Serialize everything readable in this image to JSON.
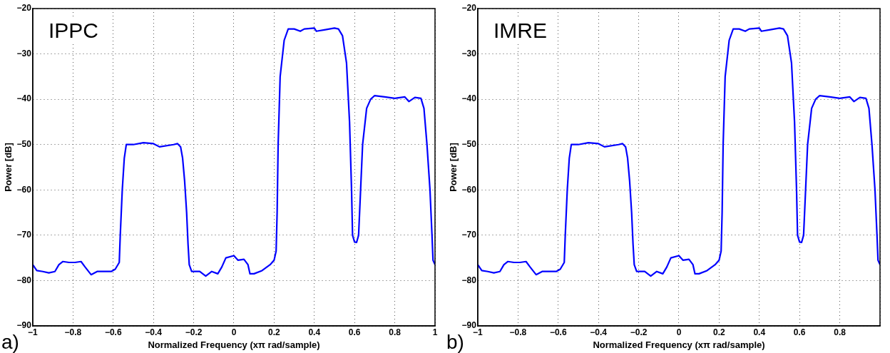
{
  "chart_data": [
    {
      "type": "line",
      "annotations": [
        "IPPC",
        "a)"
      ],
      "xlabel": "Normalized Frequency (xπ rad/sample)",
      "ylabel": "Power [dB]",
      "color": "#0000ff",
      "grid": true,
      "xlim": [
        -1,
        1
      ],
      "ylim": [
        -90,
        -20
      ],
      "xticks": [
        -1,
        -0.8,
        -0.6,
        -0.4,
        -0.2,
        0,
        0.2,
        0.4,
        0.6,
        0.8,
        1
      ],
      "yticks": [
        -90,
        -80,
        -70,
        -60,
        -50,
        -40,
        -30,
        -20
      ],
      "x": [
        -1,
        -0.98,
        -0.95,
        -0.92,
        -0.89,
        -0.87,
        -0.85,
        -0.82,
        -0.79,
        -0.76,
        -0.74,
        -0.71,
        -0.68,
        -0.64,
        -0.61,
        -0.59,
        -0.57,
        -0.565,
        -0.555,
        -0.545,
        -0.535,
        -0.5,
        -0.45,
        -0.4,
        -0.37,
        -0.3,
        -0.28,
        -0.265,
        -0.255,
        -0.245,
        -0.235,
        -0.228,
        -0.222,
        -0.21,
        -0.17,
        -0.14,
        -0.11,
        -0.08,
        -0.06,
        -0.04,
        0,
        0.02,
        0.05,
        0.07,
        0.08,
        0.1,
        0.14,
        0.18,
        0.2,
        0.21,
        0.215,
        0.22,
        0.23,
        0.25,
        0.27,
        0.3,
        0.33,
        0.35,
        0.4,
        0.41,
        0.45,
        0.5,
        0.52,
        0.54,
        0.56,
        0.575,
        0.585,
        0.59,
        0.6,
        0.61,
        0.62,
        0.63,
        0.64,
        0.66,
        0.68,
        0.7,
        0.75,
        0.8,
        0.85,
        0.87,
        0.9,
        0.93,
        0.945,
        0.96,
        0.975,
        0.985,
        0.99,
        1
      ],
      "values": [
        -76.5,
        -77.8,
        -78,
        -78.3,
        -78,
        -76.5,
        -75.8,
        -76,
        -76,
        -75.8,
        -77,
        -78.7,
        -78,
        -78,
        -78,
        -77.5,
        -76,
        -70,
        -60,
        -53,
        -50,
        -50,
        -49.6,
        -49.8,
        -50.5,
        -50,
        -49.8,
        -50.5,
        -53,
        -58,
        -65,
        -72,
        -76.5,
        -78,
        -78,
        -79,
        -78,
        -78.5,
        -77,
        -75,
        -74.5,
        -75.5,
        -75.3,
        -76.5,
        -78.5,
        -78.5,
        -77.8,
        -76.5,
        -75.5,
        -73.5,
        -65,
        -50,
        -35,
        -27,
        -24.5,
        -24.5,
        -25,
        -24.5,
        -24.3,
        -25,
        -24.7,
        -24.3,
        -24.5,
        -26,
        -32,
        -45,
        -60,
        -70,
        -71.5,
        -71.6,
        -70,
        -60,
        -50,
        -42,
        -40,
        -39.2,
        -39.5,
        -39.8,
        -39.5,
        -40.5,
        -39.6,
        -39.8,
        -42,
        -50,
        -60,
        -70,
        -75.5,
        -76.5
      ]
    },
    {
      "type": "line",
      "annotations": [
        "IMRE",
        "b)"
      ],
      "xlabel": "Normalized Frequency (xπ rad/sample)",
      "ylabel": "Power [dB]",
      "color": "#0000ff",
      "grid": true,
      "xlim": [
        -1,
        1
      ],
      "ylim": [
        -90,
        -20
      ],
      "xticks": [
        -1,
        -0.8,
        -0.6,
        -0.4,
        -0.2,
        0,
        0.2,
        0.4,
        0.6,
        0.8,
        {
          "value": 1,
          "label": null
        }
      ],
      "yticks": [
        -90,
        -80,
        -70,
        -60,
        -50,
        -40,
        -30,
        -20
      ],
      "x": [
        -1,
        -0.98,
        -0.95,
        -0.92,
        -0.89,
        -0.87,
        -0.85,
        -0.82,
        -0.79,
        -0.76,
        -0.74,
        -0.71,
        -0.68,
        -0.64,
        -0.61,
        -0.59,
        -0.57,
        -0.565,
        -0.555,
        -0.545,
        -0.535,
        -0.5,
        -0.45,
        -0.4,
        -0.37,
        -0.3,
        -0.28,
        -0.265,
        -0.255,
        -0.245,
        -0.235,
        -0.228,
        -0.222,
        -0.21,
        -0.17,
        -0.14,
        -0.11,
        -0.08,
        -0.06,
        -0.04,
        0,
        0.02,
        0.05,
        0.07,
        0.08,
        0.1,
        0.14,
        0.18,
        0.2,
        0.21,
        0.215,
        0.22,
        0.23,
        0.25,
        0.27,
        0.3,
        0.33,
        0.35,
        0.4,
        0.41,
        0.45,
        0.5,
        0.52,
        0.54,
        0.56,
        0.575,
        0.585,
        0.59,
        0.6,
        0.61,
        0.62,
        0.63,
        0.64,
        0.66,
        0.68,
        0.7,
        0.75,
        0.8,
        0.85,
        0.87,
        0.9,
        0.93,
        0.945,
        0.96,
        0.975,
        0.985,
        0.99,
        1
      ],
      "values": [
        -76.5,
        -77.8,
        -78,
        -78.3,
        -78,
        -76.5,
        -75.8,
        -76,
        -76,
        -75.8,
        -77,
        -78.7,
        -78,
        -78,
        -78,
        -77.5,
        -76,
        -70,
        -60,
        -53,
        -50,
        -50,
        -49.6,
        -49.8,
        -50.5,
        -50,
        -49.8,
        -50.5,
        -53,
        -58,
        -65,
        -72,
        -76.5,
        -78,
        -78,
        -79,
        -78,
        -78.5,
        -77,
        -75,
        -74.5,
        -75.5,
        -75.3,
        -76.5,
        -78.5,
        -78.5,
        -77.8,
        -76.5,
        -75.5,
        -73.5,
        -65,
        -50,
        -35,
        -27,
        -24.5,
        -24.5,
        -25,
        -24.5,
        -24.3,
        -25,
        -24.7,
        -24.3,
        -24.5,
        -26,
        -32,
        -45,
        -60,
        -70,
        -71.5,
        -71.6,
        -70,
        -60,
        -50,
        -42,
        -40,
        -39.2,
        -39.5,
        -39.8,
        -39.5,
        -40.5,
        -39.6,
        -39.8,
        -42,
        -50,
        -60,
        -70,
        -75.5,
        -76.5
      ]
    }
  ]
}
